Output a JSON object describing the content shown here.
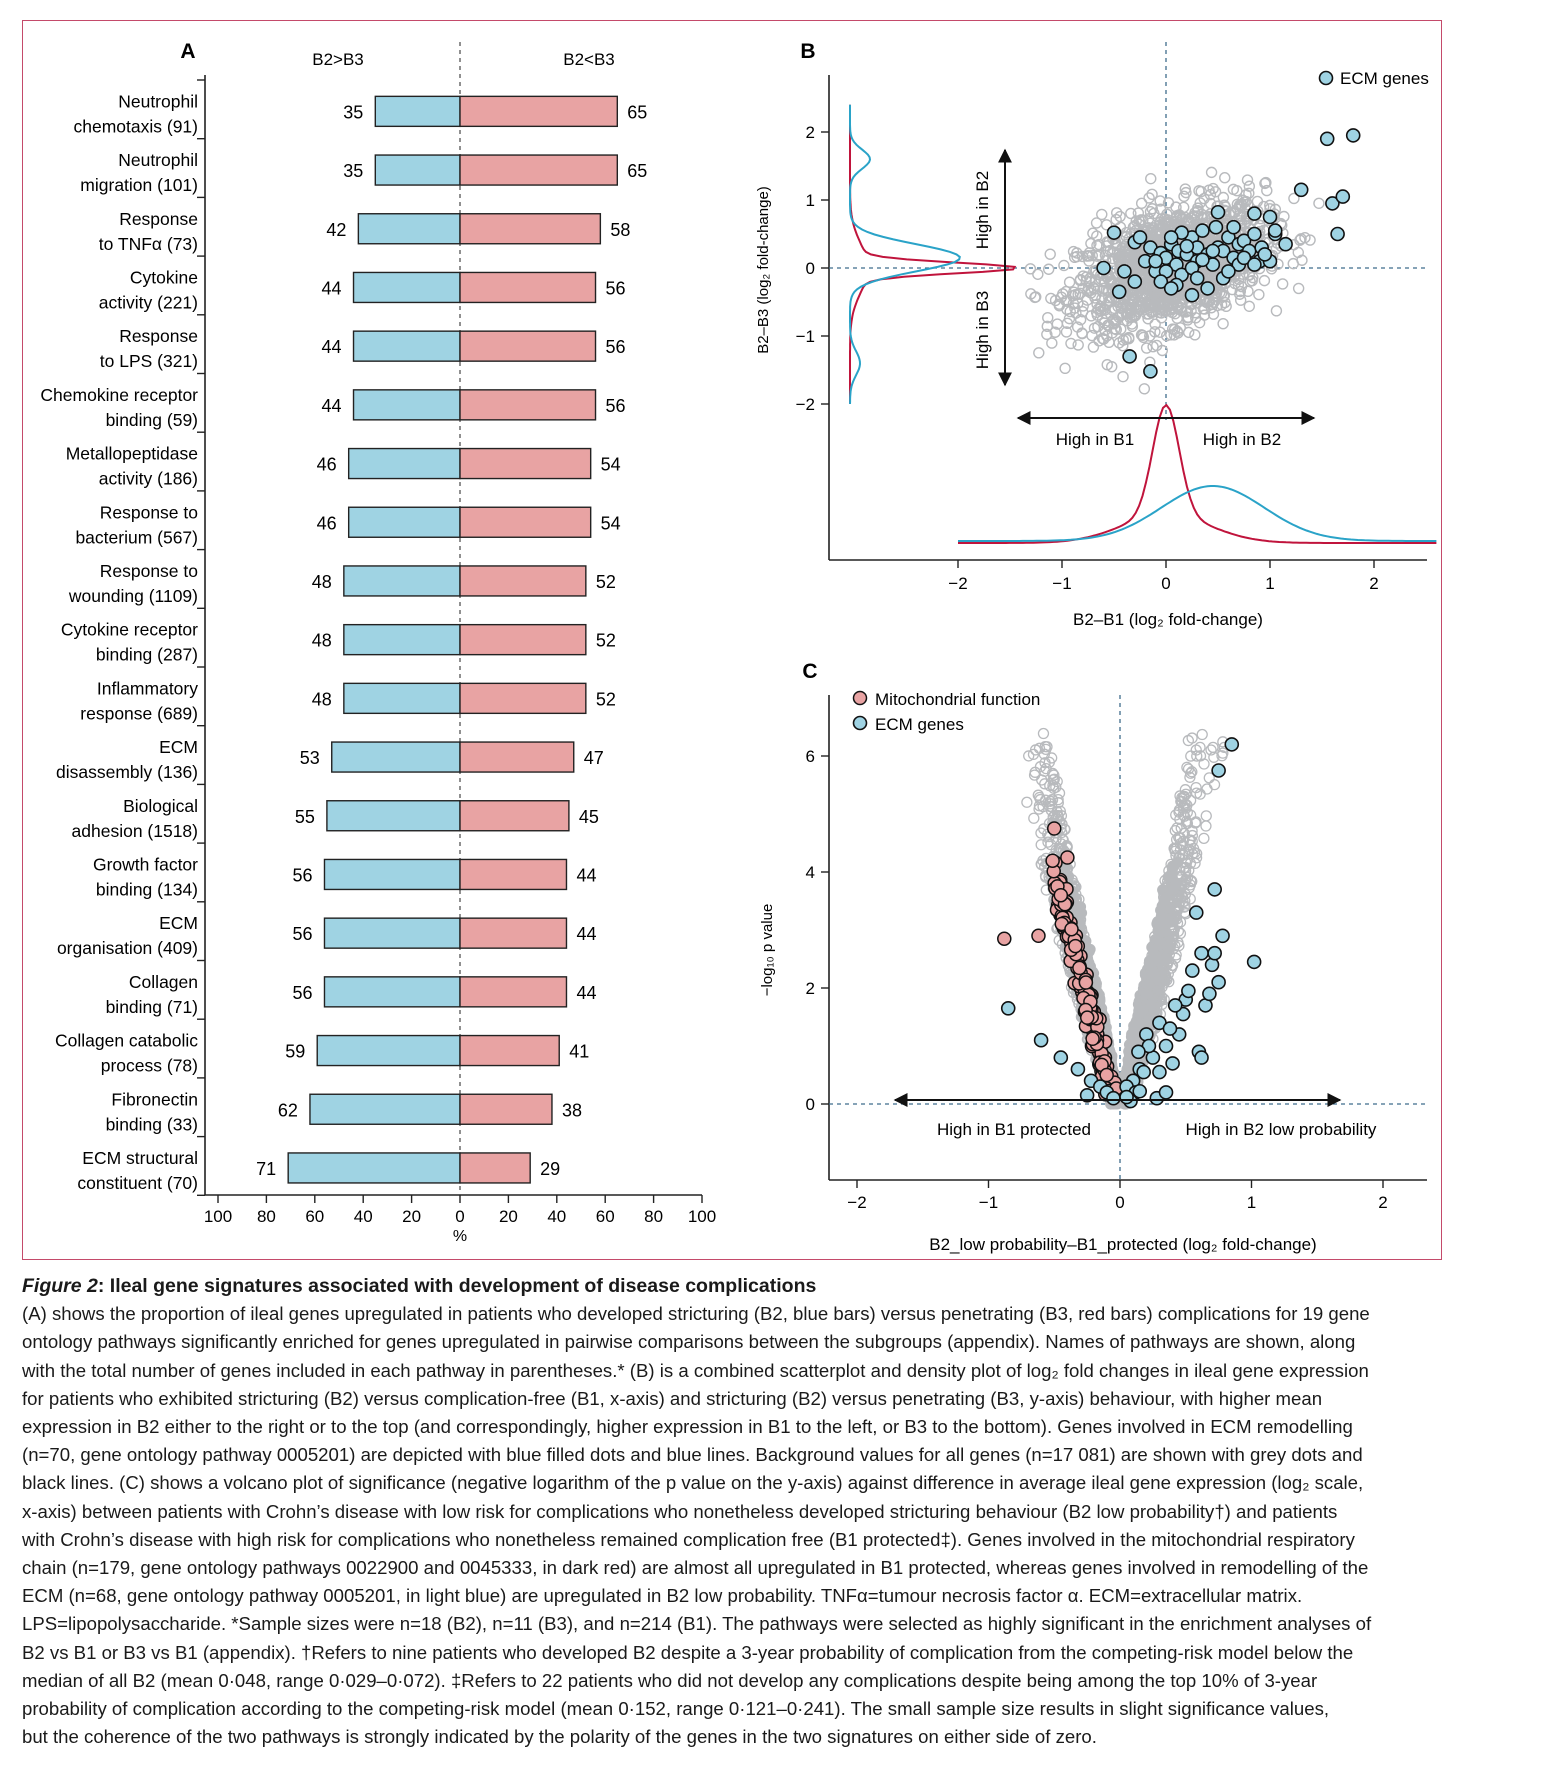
{
  "panels": {
    "a": {
      "letter": "A",
      "left_header": "B2>B3",
      "right_header": "B2<B3",
      "xlabel": "%"
    },
    "b": {
      "letter": "B",
      "legend": "ECM genes",
      "ylabel": "B2–B3 (log₂ fold-change)",
      "xlabel": "B2–B1 (log₂ fold-change)",
      "arrow_up": "High in B2",
      "arrow_down": "High in B3",
      "arrow_left": "High in B1",
      "arrow_right": "High in B2"
    },
    "c": {
      "letter": "C",
      "legend": [
        "Mitochondrial function",
        "ECM genes"
      ],
      "ylabel": "−log₁₀ p value",
      "xlabel": "B2_low probability–B1_protected (log₂ fold-change)",
      "arrow_left": "High in B1 protected",
      "arrow_right": "High in B2 low probability"
    }
  },
  "chart_data": [
    {
      "type": "bar",
      "panel": "A",
      "categories": [
        [
          "Neutrophil",
          "chemotaxis (91)"
        ],
        [
          "Neutrophil",
          "migration (101)"
        ],
        [
          "Response",
          "to TNFα (73)"
        ],
        [
          "Cytokine",
          "activity (221)"
        ],
        [
          "Response",
          "to LPS (321)"
        ],
        [
          "Chemokine receptor",
          "binding (59)"
        ],
        [
          "Metallopeptidase",
          "activity (186)"
        ],
        [
          "Response to",
          "bacterium (567)"
        ],
        [
          "Response to",
          "wounding (1109)"
        ],
        [
          "Cytokine receptor",
          "binding (287)"
        ],
        [
          "Inflammatory",
          "response (689)"
        ],
        [
          "ECM",
          "disassembly (136)"
        ],
        [
          "Biological",
          "adhesion (1518)"
        ],
        [
          "Growth factor",
          "binding (134)"
        ],
        [
          "ECM",
          "organisation (409)"
        ],
        [
          "Collagen",
          "binding (71)"
        ],
        [
          "Collagen catabolic",
          "process (78)"
        ],
        [
          "Fibronectin",
          "binding (33)"
        ],
        [
          "ECM structural",
          "constituent (70)"
        ]
      ],
      "series": [
        {
          "name": "B2>B3",
          "values": [
            35,
            35,
            42,
            44,
            44,
            44,
            46,
            46,
            48,
            48,
            48,
            53,
            55,
            56,
            56,
            56,
            59,
            62,
            71
          ]
        },
        {
          "name": "B2<B3",
          "values": [
            65,
            65,
            58,
            56,
            56,
            56,
            54,
            54,
            52,
            52,
            52,
            47,
            45,
            44,
            44,
            44,
            41,
            38,
            29
          ]
        }
      ],
      "colors": {
        "B2>B3": "#9fd3e3",
        "B2<B3": "#e8a3a3"
      },
      "xticks": [
        "100",
        "80",
        "60",
        "40",
        "20",
        "0",
        "20",
        "40",
        "60",
        "80",
        "100"
      ],
      "xlim": [
        -100,
        100
      ]
    },
    {
      "type": "scatter",
      "panel": "B",
      "xlim": [
        -3.1,
        2.55
      ],
      "ylim": [
        -2.0,
        2.5
      ],
      "xticks": [
        -2,
        -1,
        0,
        1,
        2
      ],
      "yticks": [
        -2,
        -1,
        0,
        1,
        2
      ],
      "xtick_labels": [
        "−2",
        "−1",
        "0",
        "1",
        "2"
      ],
      "ytick_labels": [
        "−2",
        "−1",
        "0",
        "1",
        "2"
      ],
      "ecm_points": [
        [
          -0.5,
          0.52
        ],
        [
          -0.3,
          0.38
        ],
        [
          -0.25,
          0.45
        ],
        [
          -0.2,
          0.1
        ],
        [
          -0.15,
          0.3
        ],
        [
          -0.1,
          -0.05
        ],
        [
          -0.05,
          0.22
        ],
        [
          0,
          0.15
        ],
        [
          0.05,
          0.35
        ],
        [
          0.1,
          0.05
        ],
        [
          0.12,
          0.25
        ],
        [
          0.15,
          -0.1
        ],
        [
          0.2,
          0.2
        ],
        [
          0.25,
          0.45
        ],
        [
          0.3,
          0.1
        ],
        [
          0.3,
          0.3
        ],
        [
          0.35,
          0.55
        ],
        [
          0.4,
          0.2
        ],
        [
          0.45,
          0.05
        ],
        [
          0.5,
          0.3
        ],
        [
          0.55,
          0.25
        ],
        [
          0.6,
          0.45
        ],
        [
          0.65,
          0.15
        ],
        [
          0.7,
          0.35
        ],
        [
          0.75,
          0.4
        ],
        [
          0.8,
          0.25
        ],
        [
          0.85,
          0.5
        ],
        [
          0.9,
          0.1
        ],
        [
          0.92,
          0.3
        ],
        [
          1.0,
          0.75
        ],
        [
          1.05,
          0.5
        ],
        [
          0.5,
          0.82
        ],
        [
          0.15,
          0.52
        ],
        [
          0.0,
          -0.05
        ],
        [
          -0.05,
          -0.2
        ],
        [
          0.25,
          -0.4
        ],
        [
          0.1,
          -0.25
        ],
        [
          -0.3,
          -0.2
        ],
        [
          -0.4,
          -0.05
        ],
        [
          -0.45,
          -0.35
        ],
        [
          -0.6,
          0.0
        ],
        [
          -0.35,
          -1.3
        ],
        [
          -0.15,
          -1.52
        ],
        [
          0.45,
          0.25
        ],
        [
          0.65,
          0.6
        ],
        [
          0.7,
          0.05
        ],
        [
          0.85,
          0.8
        ],
        [
          1.05,
          0.55
        ],
        [
          1.3,
          1.15
        ],
        [
          1.6,
          0.95
        ],
        [
          1.7,
          1.05
        ],
        [
          1.65,
          0.5
        ],
        [
          1.55,
          1.9
        ],
        [
          1.8,
          1.95
        ],
        [
          1.0,
          0.1
        ],
        [
          0.55,
          -0.15
        ],
        [
          0.4,
          -0.3
        ],
        [
          0.25,
          0.0
        ],
        [
          0.6,
          -0.05
        ],
        [
          0.75,
          0.15
        ],
        [
          1.15,
          0.35
        ],
        [
          0.95,
          0.2
        ],
        [
          0.2,
          0.32
        ],
        [
          0.05,
          0.45
        ],
        [
          -0.1,
          0.1
        ],
        [
          0.35,
          0.12
        ],
        [
          0.05,
          -0.3
        ],
        [
          0.3,
          -0.15
        ],
        [
          0.85,
          0.05
        ],
        [
          0.48,
          0.6
        ]
      ]
    },
    {
      "type": "scatter",
      "panel": "C",
      "xlim": [
        -2.15,
        2.4
      ],
      "ylim": [
        -1.3,
        7.2
      ],
      "xticks": [
        -2,
        -1,
        0,
        1,
        2
      ],
      "yticks": [
        0,
        2,
        4,
        6
      ],
      "xtick_labels": [
        "−2",
        "−1",
        "0",
        "1",
        "2"
      ],
      "ytick_labels": [
        "0",
        "2",
        "4",
        "6"
      ],
      "series": [
        {
          "name": "Mitochondrial function"
        },
        {
          "name": "ECM genes"
        }
      ],
      "ecm_points": [
        [
          0.85,
          6.2
        ],
        [
          0.75,
          5.75
        ],
        [
          0.72,
          3.7
        ],
        [
          0.58,
          3.3
        ],
        [
          0.78,
          2.9
        ],
        [
          1.02,
          2.45
        ],
        [
          0.62,
          2.6
        ],
        [
          0.7,
          2.4
        ],
        [
          0.55,
          2.3
        ],
        [
          0.75,
          2.1
        ],
        [
          0.5,
          1.8
        ],
        [
          0.3,
          1.4
        ],
        [
          0.2,
          1.2
        ],
        [
          0.65,
          1.7
        ],
        [
          0.25,
          0.8
        ],
        [
          0.15,
          0.6
        ],
        [
          0.1,
          0.4
        ],
        [
          0.05,
          0.3
        ],
        [
          0.45,
          1.2
        ],
        [
          0.35,
          1.0
        ],
        [
          0.4,
          0.7
        ],
        [
          0.6,
          0.9
        ],
        [
          0.12,
          0.2
        ],
        [
          0.18,
          0.55
        ],
        [
          0.3,
          0.55
        ],
        [
          0.22,
          1.0
        ],
        [
          0.48,
          1.55
        ],
        [
          0.52,
          1.95
        ],
        [
          -0.85,
          1.65
        ],
        [
          -0.6,
          1.1
        ],
        [
          -0.45,
          0.8
        ],
        [
          -0.32,
          0.6
        ],
        [
          -0.22,
          0.4
        ],
        [
          -0.15,
          0.3
        ],
        [
          -0.1,
          0.2
        ],
        [
          -0.25,
          0.15
        ],
        [
          0.28,
          0.1
        ],
        [
          0.08,
          0.05
        ],
        [
          0.35,
          0.2
        ],
        [
          0.62,
          0.8
        ],
        [
          0.68,
          1.9
        ],
        [
          0.72,
          2.6
        ],
        [
          0.38,
          1.3
        ],
        [
          0.14,
          0.9
        ],
        [
          0.42,
          1.7
        ],
        [
          -0.05,
          0.1
        ],
        [
          0.05,
          0.12
        ],
        [
          0.15,
          0.22
        ]
      ]
    }
  ],
  "caption": {
    "fig_no": "Figure 2",
    "title": ": Ileal gene signatures associated with development of disease complications",
    "lines": [
      "(A) shows the proportion of ileal genes upregulated in patients who developed stricturing (B2, blue bars) versus penetrating (B3, red bars) complications for 19 gene",
      "ontology pathways significantly enriched for genes upregulated in pairwise comparisons between the subgroups (appendix). Names of pathways are shown, along",
      "with the total number of genes included in each pathway in parentheses.* (B) is a combined scatterplot and density plot of log₂ fold changes in ileal gene expression",
      "for patients who exhibited stricturing (B2) versus complication-free (B1, x-axis) and stricturing (B2) versus penetrating (B3, y-axis) behaviour, with higher mean",
      "expression in B2 either to the right or to the top (and correspondingly, higher expression in B1 to the left, or B3 to the bottom). Genes involved in ECM remodelling",
      "(n=70, gene ontology pathway 0005201) are depicted with blue filled dots and blue lines. Background values for all genes (n=17 081) are shown with grey dots and",
      "black lines. (C) shows a volcano plot of significance (negative logarithm of the p value on the y-axis) against difference in average ileal gene expression (log₂ scale,",
      "x-axis) between patients with Crohn’s disease with low risk for complications who nonetheless developed stricturing behaviour (B2 low probability†) and patients",
      "with Crohn’s disease with high risk for complications who nonetheless remained complication free (B1 protected‡). Genes involved in the mitochondrial respiratory",
      "chain (n=179, gene ontology pathways 0022900 and 0045333, in dark red) are almost all upregulated in B1 protected, whereas genes involved in remodelling of the",
      "ECM (n=68, gene ontology pathway 0005201, in light blue) are upregulated in B2 low probability. TNFα=tumour necrosis factor α. ECM=extracellular matrix.",
      "LPS=lipopolysaccharide. *Sample sizes were n=18 (B2), n=11 (B3), and n=214 (B1). The pathways were selected as highly significant in the enrichment analyses of",
      "B2 vs B1 or B3 vs B1 (appendix). †Refers to nine patients who developed B2 despite a 3-year probability of complication from the competing-risk model below the",
      "median of all B2 (mean 0·048, range 0·029–0·072). ‡Refers to 22 patients who did not develop any complications despite being among the top 10% of 3-year",
      "probability of complication according to the competing-risk model (mean 0·152, range 0·121–0·241). The small sample size results in slight significance values,",
      "but the coherence of the two pathways is strongly indicated by the polarity of the genes in the two signatures on either side of zero."
    ]
  },
  "colors": {
    "blue": "#9fd3e3",
    "red": "#e8a3a3",
    "mito": "#e8a3a3",
    "grey": "#b8babd",
    "frame": "#c44a6a",
    "curve_blue": "#2aa3c8",
    "curve_red": "#c0143c"
  }
}
